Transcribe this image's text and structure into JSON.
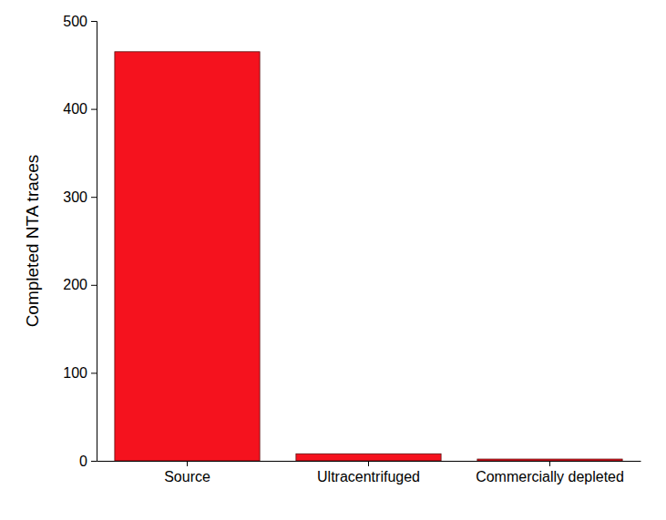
{
  "chart_data": {
    "type": "bar",
    "y_label": "Completed NTA traces",
    "categories": [
      "Source",
      "Ultracentrifuged",
      "Commercially depleted"
    ],
    "values": [
      465,
      8,
      2
    ],
    "color": "#f5121e",
    "ylim": [
      0,
      500
    ],
    "yticks": [
      0,
      100,
      200,
      300,
      400,
      500
    ],
    "grid": false
  }
}
